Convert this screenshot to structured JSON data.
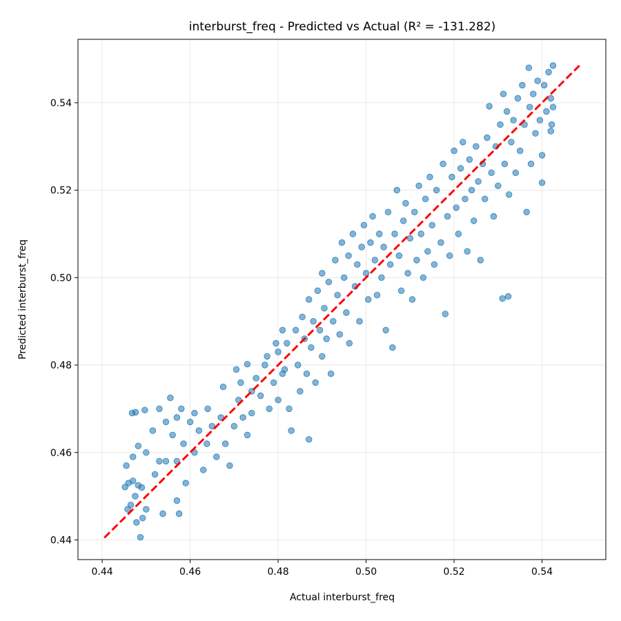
{
  "chart_data": {
    "type": "scatter",
    "title": "interburst_freq - Predicted vs Actual (R² = -131.282)",
    "xlabel": "Actual interburst_freq",
    "ylabel": "Predicted interburst_freq",
    "xlim": [
      0.4345,
      0.5545
    ],
    "ylim": [
      0.4355,
      0.5545
    ],
    "xticks": [
      0.44,
      0.46,
      0.48,
      0.5,
      0.52,
      0.54
    ],
    "yticks": [
      0.44,
      0.46,
      0.48,
      0.5,
      0.52,
      0.54
    ],
    "xtick_labels": [
      "0.44",
      "0.46",
      "0.48",
      "0.50",
      "0.52",
      "0.54"
    ],
    "ytick_labels": [
      "0.44",
      "0.46",
      "0.48",
      "0.50",
      "0.52",
      "0.54"
    ],
    "grid": true,
    "legend": "none",
    "point_color": "#1f77b4",
    "reference_line": {
      "from": [
        0.4405,
        0.4405
      ],
      "to": [
        0.5485,
        0.5485
      ],
      "color": "#ff0000",
      "style": "dashed"
    },
    "series": [
      {
        "points": [
          [
            0.4452,
            0.4521
          ],
          [
            0.446,
            0.453
          ],
          [
            0.447,
            0.4535
          ],
          [
            0.4482,
            0.4525
          ],
          [
            0.449,
            0.452
          ],
          [
            0.4458,
            0.447
          ],
          [
            0.4465,
            0.448
          ],
          [
            0.4475,
            0.45
          ],
          [
            0.4487,
            0.4406
          ],
          [
            0.4492,
            0.445
          ],
          [
            0.45,
            0.447
          ],
          [
            0.4478,
            0.444
          ],
          [
            0.4455,
            0.457
          ],
          [
            0.447,
            0.459
          ],
          [
            0.4482,
            0.4615
          ],
          [
            0.45,
            0.46
          ],
          [
            0.4468,
            0.469
          ],
          [
            0.4476,
            0.4692
          ],
          [
            0.4497,
            0.4697
          ],
          [
            0.4515,
            0.465
          ],
          [
            0.453,
            0.47
          ],
          [
            0.453,
            0.458
          ],
          [
            0.4538,
            0.446
          ],
          [
            0.452,
            0.455
          ],
          [
            0.4545,
            0.467
          ],
          [
            0.4545,
            0.458
          ],
          [
            0.4555,
            0.4725
          ],
          [
            0.456,
            0.464
          ],
          [
            0.457,
            0.468
          ],
          [
            0.457,
            0.458
          ],
          [
            0.457,
            0.449
          ],
          [
            0.4575,
            0.446
          ],
          [
            0.458,
            0.47
          ],
          [
            0.4585,
            0.462
          ],
          [
            0.459,
            0.453
          ],
          [
            0.46,
            0.467
          ],
          [
            0.461,
            0.469
          ],
          [
            0.461,
            0.46
          ],
          [
            0.462,
            0.465
          ],
          [
            0.463,
            0.456
          ],
          [
            0.4638,
            0.462
          ],
          [
            0.464,
            0.47
          ],
          [
            0.465,
            0.466
          ],
          [
            0.466,
            0.459
          ],
          [
            0.467,
            0.468
          ],
          [
            0.468,
            0.462
          ],
          [
            0.469,
            0.457
          ],
          [
            0.47,
            0.466
          ],
          [
            0.471,
            0.472
          ],
          [
            0.472,
            0.468
          ],
          [
            0.473,
            0.464
          ],
          [
            0.474,
            0.469
          ],
          [
            0.4675,
            0.475
          ],
          [
            0.4705,
            0.479
          ],
          [
            0.4715,
            0.476
          ],
          [
            0.473,
            0.4802
          ],
          [
            0.474,
            0.474
          ],
          [
            0.475,
            0.477
          ],
          [
            0.476,
            0.473
          ],
          [
            0.477,
            0.48
          ],
          [
            0.4775,
            0.482
          ],
          [
            0.478,
            0.47
          ],
          [
            0.479,
            0.476
          ],
          [
            0.4795,
            0.485
          ],
          [
            0.48,
            0.483
          ],
          [
            0.48,
            0.472
          ],
          [
            0.481,
            0.478
          ],
          [
            0.481,
            0.488
          ],
          [
            0.4815,
            0.479
          ],
          [
            0.482,
            0.485
          ],
          [
            0.4825,
            0.47
          ],
          [
            0.483,
            0.465
          ],
          [
            0.484,
            0.488
          ],
          [
            0.4845,
            0.48
          ],
          [
            0.485,
            0.474
          ],
          [
            0.4855,
            0.491
          ],
          [
            0.486,
            0.486
          ],
          [
            0.4865,
            0.478
          ],
          [
            0.487,
            0.463
          ],
          [
            0.487,
            0.495
          ],
          [
            0.4875,
            0.484
          ],
          [
            0.488,
            0.49
          ],
          [
            0.4885,
            0.476
          ],
          [
            0.489,
            0.497
          ],
          [
            0.4895,
            0.488
          ],
          [
            0.49,
            0.482
          ],
          [
            0.49,
            0.501
          ],
          [
            0.4905,
            0.493
          ],
          [
            0.491,
            0.486
          ],
          [
            0.4915,
            0.499
          ],
          [
            0.492,
            0.478
          ],
          [
            0.4925,
            0.49
          ],
          [
            0.493,
            0.504
          ],
          [
            0.4935,
            0.496
          ],
          [
            0.494,
            0.487
          ],
          [
            0.4945,
            0.508
          ],
          [
            0.495,
            0.5
          ],
          [
            0.4955,
            0.492
          ],
          [
            0.496,
            0.505
          ],
          [
            0.4962,
            0.485
          ],
          [
            0.497,
            0.51
          ],
          [
            0.4975,
            0.498
          ],
          [
            0.498,
            0.503
          ],
          [
            0.4985,
            0.49
          ],
          [
            0.499,
            0.507
          ],
          [
            0.4995,
            0.512
          ],
          [
            0.5,
            0.501
          ],
          [
            0.5005,
            0.495
          ],
          [
            0.501,
            0.508
          ],
          [
            0.5015,
            0.514
          ],
          [
            0.502,
            0.504
          ],
          [
            0.5025,
            0.496
          ],
          [
            0.503,
            0.51
          ],
          [
            0.5035,
            0.5
          ],
          [
            0.504,
            0.507
          ],
          [
            0.5045,
            0.488
          ],
          [
            0.505,
            0.515
          ],
          [
            0.5055,
            0.503
          ],
          [
            0.506,
            0.484
          ],
          [
            0.5065,
            0.51
          ],
          [
            0.507,
            0.52
          ],
          [
            0.5075,
            0.505
          ],
          [
            0.508,
            0.497
          ],
          [
            0.5085,
            0.513
          ],
          [
            0.509,
            0.517
          ],
          [
            0.5095,
            0.501
          ],
          [
            0.51,
            0.509
          ],
          [
            0.5105,
            0.495
          ],
          [
            0.511,
            0.515
          ],
          [
            0.5115,
            0.504
          ],
          [
            0.512,
            0.521
          ],
          [
            0.5125,
            0.51
          ],
          [
            0.513,
            0.5
          ],
          [
            0.5135,
            0.518
          ],
          [
            0.514,
            0.506
          ],
          [
            0.5145,
            0.523
          ],
          [
            0.515,
            0.512
          ],
          [
            0.5155,
            0.503
          ],
          [
            0.516,
            0.52
          ],
          [
            0.517,
            0.508
          ],
          [
            0.5175,
            0.526
          ],
          [
            0.518,
            0.4917
          ],
          [
            0.5185,
            0.514
          ],
          [
            0.519,
            0.505
          ],
          [
            0.5195,
            0.523
          ],
          [
            0.52,
            0.529
          ],
          [
            0.5205,
            0.516
          ],
          [
            0.521,
            0.51
          ],
          [
            0.5215,
            0.525
          ],
          [
            0.522,
            0.531
          ],
          [
            0.5225,
            0.518
          ],
          [
            0.523,
            0.506
          ],
          [
            0.5235,
            0.527
          ],
          [
            0.524,
            0.52
          ],
          [
            0.5245,
            0.513
          ],
          [
            0.525,
            0.53
          ],
          [
            0.5255,
            0.522
          ],
          [
            0.526,
            0.504
          ],
          [
            0.5265,
            0.526
          ],
          [
            0.527,
            0.518
          ],
          [
            0.5275,
            0.532
          ],
          [
            0.528,
            0.5392
          ],
          [
            0.5285,
            0.524
          ],
          [
            0.529,
            0.514
          ],
          [
            0.5295,
            0.53
          ],
          [
            0.53,
            0.521
          ],
          [
            0.5305,
            0.535
          ],
          [
            0.531,
            0.4952
          ],
          [
            0.5312,
            0.542
          ],
          [
            0.5315,
            0.526
          ],
          [
            0.532,
            0.538
          ],
          [
            0.5323,
            0.4957
          ],
          [
            0.5325,
            0.519
          ],
          [
            0.533,
            0.531
          ],
          [
            0.5335,
            0.536
          ],
          [
            0.534,
            0.524
          ],
          [
            0.5345,
            0.541
          ],
          [
            0.535,
            0.529
          ],
          [
            0.5355,
            0.544
          ],
          [
            0.536,
            0.535
          ],
          [
            0.5365,
            0.515
          ],
          [
            0.537,
            0.548
          ],
          [
            0.5372,
            0.539
          ],
          [
            0.5375,
            0.526
          ],
          [
            0.538,
            0.542
          ],
          [
            0.5385,
            0.533
          ],
          [
            0.539,
            0.545
          ],
          [
            0.5395,
            0.536
          ],
          [
            0.54,
            0.528
          ],
          [
            0.54,
            0.5217
          ],
          [
            0.5405,
            0.544
          ],
          [
            0.541,
            0.538
          ],
          [
            0.5415,
            0.547
          ],
          [
            0.542,
            0.541
          ],
          [
            0.5422,
            0.535
          ],
          [
            0.5425,
            0.5485
          ],
          [
            0.5425,
            0.539
          ],
          [
            0.542,
            0.5335
          ]
        ]
      }
    ]
  }
}
